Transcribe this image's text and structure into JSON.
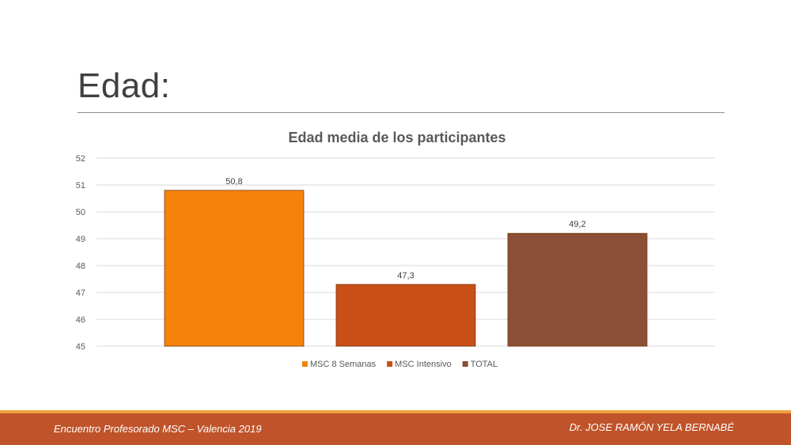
{
  "slide": {
    "title": "Edad:"
  },
  "footer": {
    "left_text": "Encuentro Profesorado MSC – Valencia 2019",
    "right_text": "Dr. JOSE RAMÓN YELA BERNABÉ"
  },
  "chart_data": {
    "type": "bar",
    "title": "Edad media de los participantes",
    "xlabel": "",
    "ylabel": "",
    "ylim": [
      45,
      52
    ],
    "yticks": [
      "45",
      "46",
      "47",
      "48",
      "49",
      "50",
      "51",
      "52"
    ],
    "grid": true,
    "legend_position": "bottom",
    "series": [
      {
        "name": "MSC 8 Semanas",
        "values": [
          50.8
        ],
        "label": "50,8",
        "color": "#f5820a"
      },
      {
        "name": "MSC Intensivo",
        "values": [
          47.3
        ],
        "label": "47,3",
        "color": "#c84f18"
      },
      {
        "name": "TOTAL",
        "values": [
          49.2
        ],
        "label": "49,2",
        "color": "#8a4f35"
      }
    ]
  }
}
